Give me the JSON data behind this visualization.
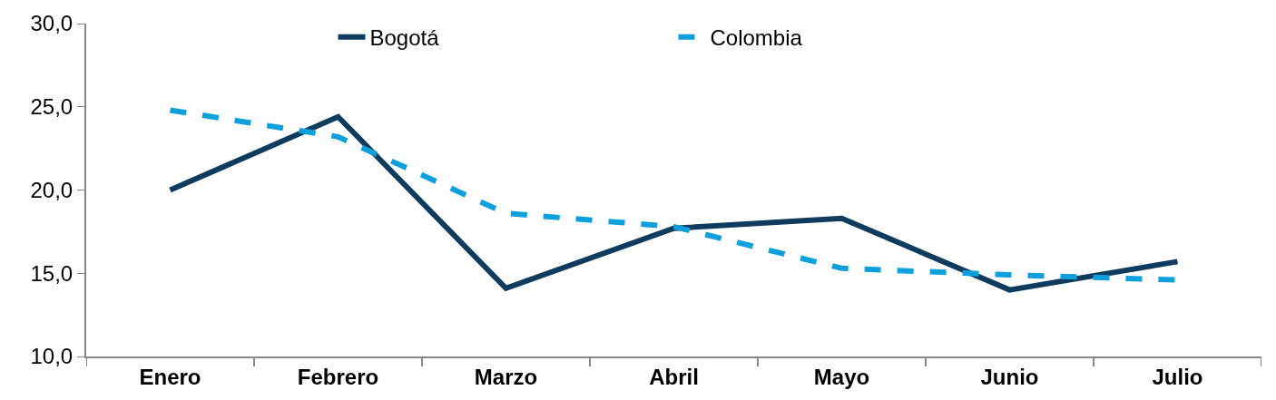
{
  "chart_data": {
    "type": "line",
    "categories": [
      "Enero",
      "Febrero",
      "Marzo",
      "Abril",
      "Mayo",
      "Junio",
      "Julio"
    ],
    "series": [
      {
        "name": "Bogotá",
        "color": "#0e3b5e",
        "line_style": "solid",
        "values": [
          20.0,
          24.4,
          14.1,
          17.7,
          18.3,
          14.0,
          15.7
        ]
      },
      {
        "name": "Colombia",
        "color": "#0ea0dc",
        "line_style": "dashed",
        "values": [
          24.8,
          23.2,
          18.6,
          17.8,
          15.3,
          14.9,
          14.6
        ]
      }
    ],
    "ylim": [
      10,
      30
    ],
    "yticks": [
      {
        "value": 10,
        "label": "10,0"
      },
      {
        "value": 15,
        "label": "15,0"
      },
      {
        "value": 20,
        "label": "20,0"
      },
      {
        "value": 25,
        "label": "25,0"
      },
      {
        "value": 30,
        "label": "30,0"
      }
    ],
    "legend": "top",
    "marker": "none"
  }
}
